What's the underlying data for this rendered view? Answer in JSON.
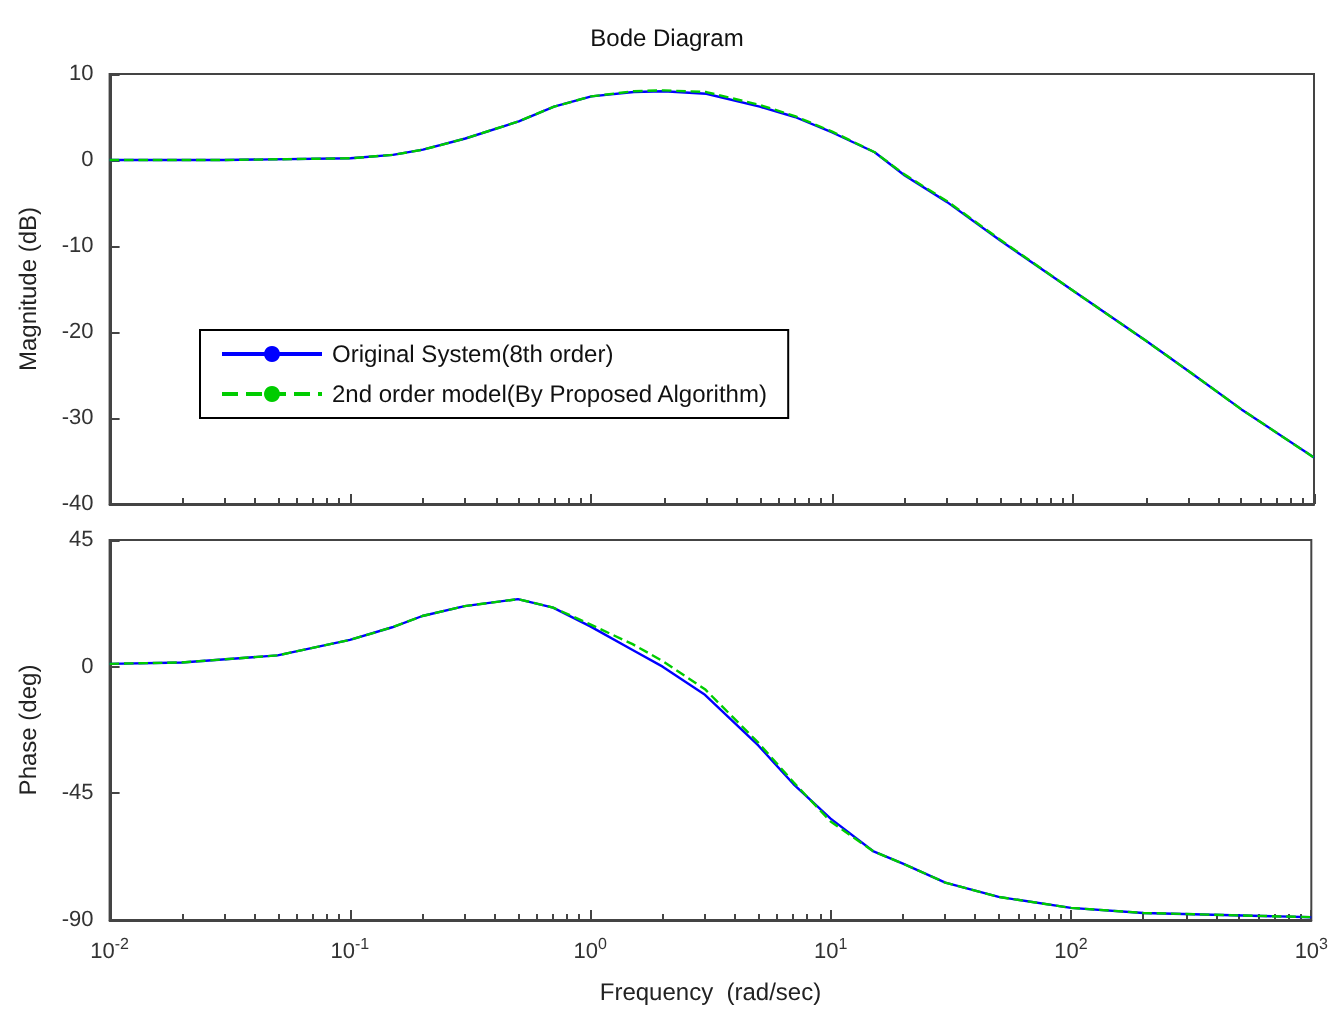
{
  "chart_data": [
    {
      "type": "line",
      "title": "Bode Diagram",
      "ylabel": "Magnitude (dB)",
      "log": "x",
      "grid": false,
      "legend": "left",
      "marker": "none",
      "tick_labels": "y",
      "xlim": [
        0.01,
        1000
      ],
      "xticks": [
        {
          "value": 0.01,
          "label": null
        },
        {
          "value": 0.1,
          "label": null
        },
        {
          "value": 1,
          "label": null
        },
        {
          "value": 10,
          "label": null
        },
        {
          "value": 100,
          "label": null
        },
        {
          "value": 1000,
          "label": null
        }
      ],
      "ylim": [
        -40,
        10
      ],
      "yticks": [
        -40,
        -30,
        -20,
        -10,
        0,
        10
      ],
      "x": [
        0.01,
        0.03,
        0.1,
        0.15,
        0.2,
        0.3,
        0.5,
        0.7,
        1,
        1.5,
        2,
        3,
        5,
        7,
        10,
        15,
        20,
        30,
        50,
        100,
        200,
        300,
        500,
        1000
      ],
      "series": [
        {
          "name": "Original System(8th order)",
          "color": "#0000ff",
          "line_style": "solid",
          "values": [
            0,
            0,
            0.2,
            0.6,
            1.2,
            2.5,
            4.5,
            6.2,
            7.4,
            7.9,
            8,
            7.7,
            6.2,
            5,
            3.2,
            0.9,
            -1.8,
            -4.9,
            -9.4,
            -15.2,
            -21,
            -24.5,
            -29,
            -34.6
          ]
        },
        {
          "name": "2nd order model(By Proposed Algorithm)",
          "color": "#00cc00",
          "line_style": "dashed",
          "values": [
            0,
            0,
            0.2,
            0.6,
            1.2,
            2.5,
            4.5,
            6.2,
            7.4,
            8,
            8.1,
            7.9,
            6.4,
            5.1,
            3.3,
            0.9,
            -1.7,
            -4.8,
            -9.3,
            -15.2,
            -21,
            -24.5,
            -29,
            -34.6
          ]
        }
      ]
    },
    {
      "type": "line",
      "xlabel": "Frequency  (rad/sec)",
      "ylabel": "Phase (deg)",
      "log": "x",
      "grid": false,
      "marker": "none",
      "xlim": [
        0.01,
        1000
      ],
      "xticks": [
        {
          "value": 0.01,
          "label": "10$^{-2}$"
        },
        {
          "value": 0.1,
          "label": "10$^{-1}$"
        },
        {
          "value": 1,
          "label": "10$^{0}$"
        },
        {
          "value": 10,
          "label": "10$^{1}$"
        },
        {
          "value": 100,
          "label": "10$^{2}$"
        },
        {
          "value": 1000,
          "label": "10$^{3}$"
        }
      ],
      "ylim": [
        -90,
        45
      ],
      "yticks": [
        -90,
        -45,
        0,
        45
      ],
      "x": [
        0.01,
        0.02,
        0.05,
        0.1,
        0.15,
        0.2,
        0.3,
        0.5,
        0.7,
        1,
        1.5,
        2,
        3,
        5,
        7,
        10,
        15,
        20,
        30,
        50,
        100,
        200,
        1000
      ],
      "series": [
        {
          "color": "#0000ff",
          "line_style": "solid",
          "values": [
            1,
            1.5,
            4,
            9.5,
            14,
            18,
            21.5,
            24,
            21,
            14.3,
            5.9,
            0,
            -10,
            -28,
            -41.7,
            -54,
            -65.5,
            -70,
            -76.7,
            -81.8,
            -85.7,
            -87.5,
            -89
          ]
        },
        {
          "color": "#00cc00",
          "line_style": "dashed",
          "values": [
            1,
            1.5,
            4,
            9.5,
            14,
            18,
            21.5,
            24,
            21,
            15,
            8,
            2,
            -8,
            -27,
            -41,
            -55,
            -65.5,
            -70,
            -76.7,
            -81.8,
            -85.7,
            -87.5,
            -89
          ]
        }
      ]
    }
  ]
}
